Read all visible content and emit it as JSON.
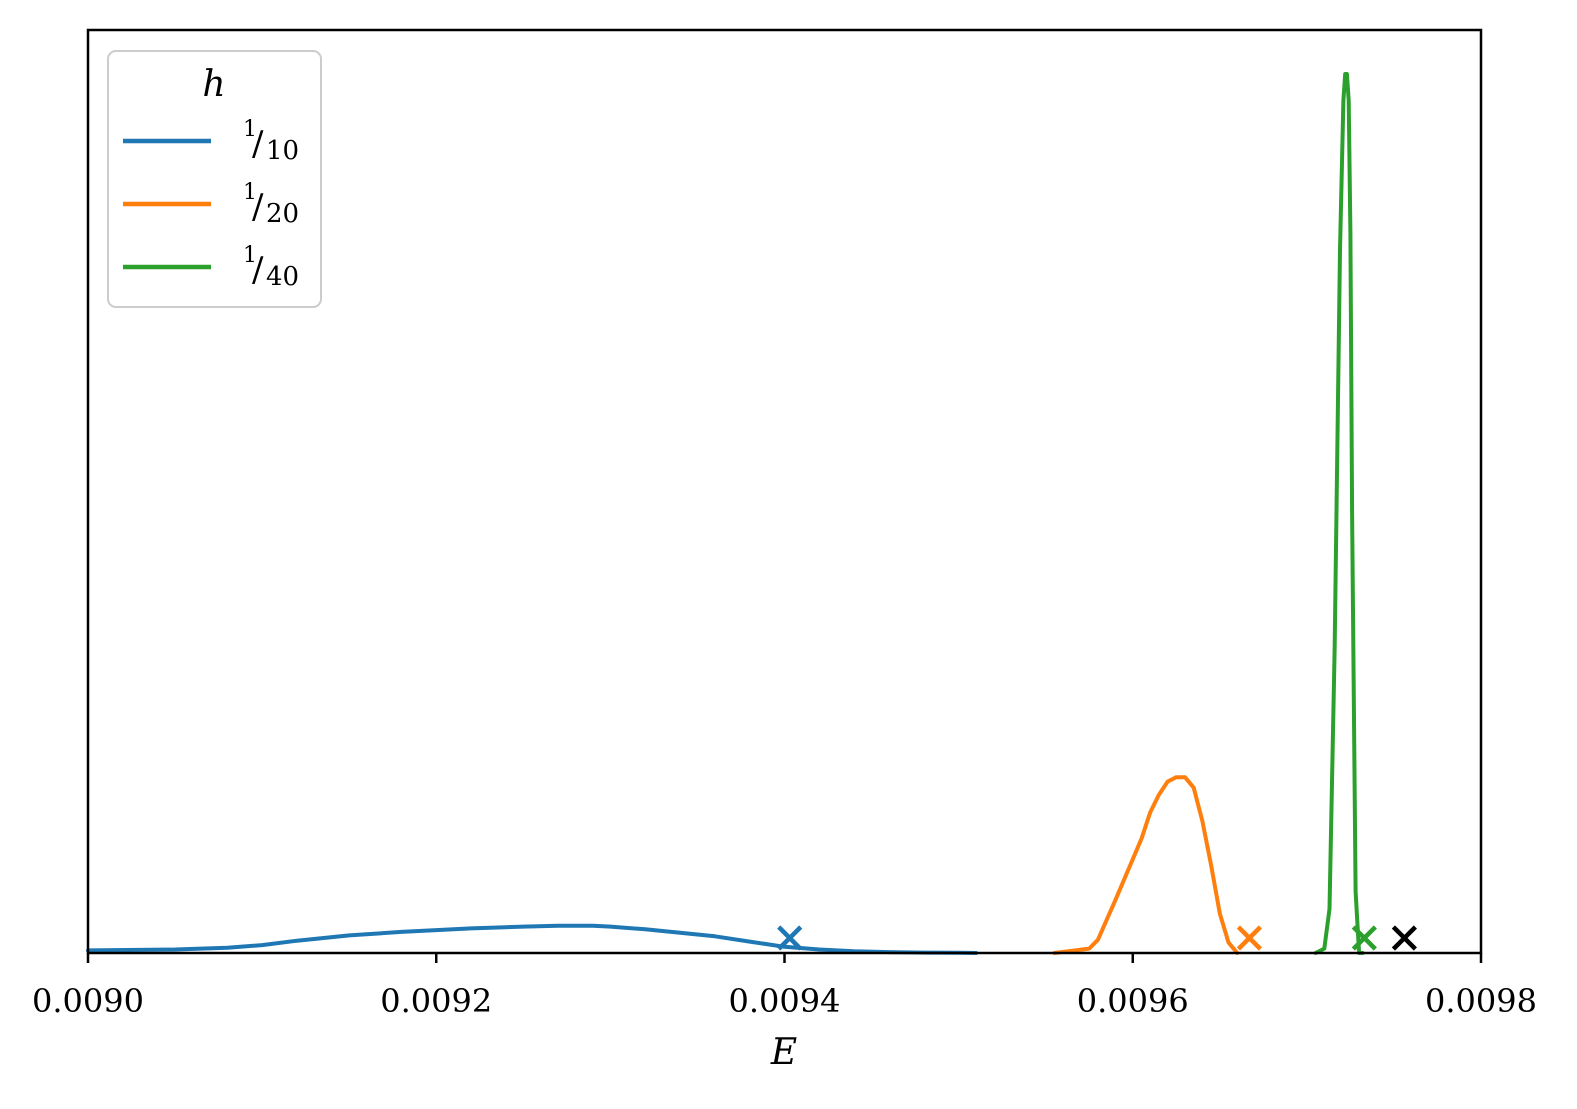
{
  "chart_data": {
    "type": "line",
    "xlabel": "E",
    "ylabel": "",
    "xlim": [
      0.009,
      0.0098
    ],
    "ylim": [
      0,
      1
    ],
    "x_ticks": [
      "0.0090",
      "0.0092",
      "0.0094",
      "0.0096",
      "0.0098"
    ],
    "x_tick_values": [
      0.009,
      0.0092,
      0.0094,
      0.0096,
      0.0098
    ],
    "grid": false,
    "legend": {
      "title": "h",
      "placement": "top-left"
    },
    "series": [
      {
        "name": "1/10",
        "numerator": "1",
        "denominator": "10",
        "color": "#1f77b4",
        "x": [
          0.009,
          0.00905,
          0.00908,
          0.0091,
          0.00912,
          0.00915,
          0.00918,
          0.0092,
          0.00922,
          0.00925,
          0.00927,
          0.00929,
          0.0093,
          0.00932,
          0.00934,
          0.00936,
          0.00938,
          0.0094,
          0.00942,
          0.00944,
          0.00946,
          0.00948,
          0.0095,
          0.00951
        ],
        "y": [
          0.003,
          0.004,
          0.006,
          0.009,
          0.014,
          0.02,
          0.024,
          0.026,
          0.028,
          0.03,
          0.031,
          0.031,
          0.03,
          0.027,
          0.023,
          0.019,
          0.013,
          0.007,
          0.004,
          0.002,
          0.001,
          0.0005,
          0.0002,
          0.0
        ]
      },
      {
        "name": "1/20",
        "numerator": "1",
        "denominator": "20",
        "color": "#ff7f0e",
        "x": [
          0.009555,
          0.009575,
          0.00958,
          0.00959,
          0.009605,
          0.00961,
          0.009615,
          0.00962,
          0.009625,
          0.00963,
          0.009635,
          0.00964,
          0.009645,
          0.00965,
          0.009655,
          0.00966
        ],
        "y": [
          0.0,
          0.005,
          0.015,
          0.06,
          0.13,
          0.16,
          0.18,
          0.195,
          0.2,
          0.2,
          0.188,
          0.15,
          0.1,
          0.045,
          0.012,
          0.0
        ]
      },
      {
        "name": "1/40",
        "numerator": "1",
        "denominator": "40",
        "color": "#2ca02c",
        "x": [
          0.009705,
          0.00971,
          0.009713,
          0.009716,
          0.009719,
          0.009721,
          0.009722,
          0.009723,
          0.009724,
          0.009725,
          0.009726,
          0.009728,
          0.00973,
          0.009732
        ],
        "y": [
          0.0,
          0.005,
          0.05,
          0.35,
          0.8,
          0.97,
          1.0,
          1.0,
          0.97,
          0.82,
          0.5,
          0.07,
          0.0,
          0.0
        ]
      }
    ],
    "markers": [
      {
        "series": "1/10",
        "x": 0.009403,
        "color": "#1f77b4",
        "symbol": "x"
      },
      {
        "series": "1/20",
        "x": 0.009667,
        "color": "#ff7f0e",
        "symbol": "x"
      },
      {
        "series": "1/40",
        "x": 0.009733,
        "color": "#2ca02c",
        "symbol": "x"
      },
      {
        "series": "reference",
        "x": 0.009756,
        "color": "#000000",
        "symbol": "x"
      }
    ]
  }
}
